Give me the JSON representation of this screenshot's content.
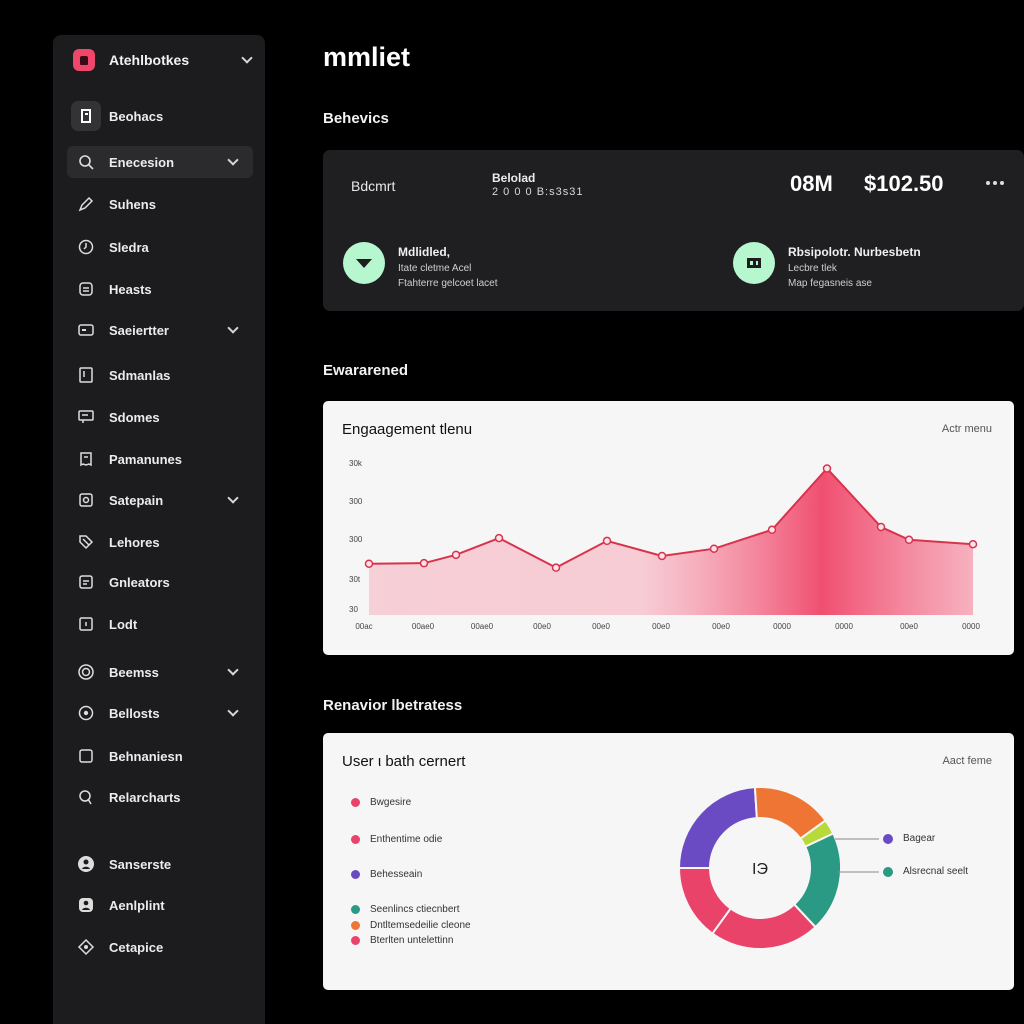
{
  "sidebar": {
    "workspace_name": "Atehlbotkes",
    "items": [
      {
        "label": "Beohacs",
        "icon": "document-icon"
      },
      {
        "label": "Enecesion",
        "icon": "search-icon"
      },
      {
        "label": "Suhens",
        "icon": "pen-icon"
      },
      {
        "label": "Sledra",
        "icon": "clock-icon"
      },
      {
        "label": "Heasts",
        "icon": "file-icon"
      },
      {
        "label": "Saeiertter",
        "icon": "card-icon"
      },
      {
        "label": "Sdmanlas",
        "icon": "bookmark-icon"
      },
      {
        "label": "Sdomes",
        "icon": "message-icon"
      },
      {
        "label": "Pamanunes",
        "icon": "receipt-icon"
      },
      {
        "label": "Satepain",
        "icon": "settings-square-icon"
      },
      {
        "label": "Lehores",
        "icon": "tag-icon"
      },
      {
        "label": "Gnleators",
        "icon": "layers-icon"
      },
      {
        "label": "Lodt",
        "icon": "lock-icon"
      },
      {
        "label": "Beemss",
        "icon": "target-icon"
      },
      {
        "label": "Bellosts",
        "icon": "gear-icon"
      },
      {
        "label": "Behnaniesn",
        "icon": "square-icon"
      },
      {
        "label": "Relarcharts",
        "icon": "pin-icon"
      },
      {
        "label": "Sanserste",
        "icon": "user-circle-icon"
      },
      {
        "label": "Aenlplint",
        "icon": "user-badge-icon"
      },
      {
        "label": "Cetapice",
        "icon": "chat-bubble-icon"
      }
    ]
  },
  "main": {
    "page_title": "mmliet",
    "section_billing": "Behevics",
    "billing": {
      "left_label": "Bdcmrt",
      "mid_label": "Belolad",
      "mid_value": "2 0 0 0 B:s3s31",
      "qty": "08M",
      "amount": "$102.50",
      "methods": [
        {
          "title": "Mdlidled,",
          "line1": "Itate cletme Acel",
          "line2": "Ftahterre gelcoet lacet"
        },
        {
          "title": "Rbsipolotr. Nurbesbetn",
          "line1": "Lecbre tlek",
          "line2": "Map fegasneis ase"
        }
      ]
    },
    "section_engagement": "Ewararened",
    "section_behavior": "Renavior lbetratess",
    "colors": {
      "accent": "#f0466a",
      "line": "#d8334d",
      "mint": "#b6f7cf",
      "donut": [
        "#6a4bc4",
        "#ee7534",
        "#b8d93a",
        "#2a9a84",
        "#e9436a"
      ]
    }
  },
  "chart_data": [
    {
      "type": "area",
      "title": "Engaagement tlenu",
      "action": "Actr menu",
      "y_ticks": [
        "30k",
        "300",
        "300",
        "30t",
        "30"
      ],
      "x_labels": [
        "00ac",
        "00ae0",
        "00ae0",
        "00e0",
        "00e0",
        "00e0",
        "00e0",
        "0000",
        "0000",
        "00e0",
        "0000"
      ],
      "values": [
        92,
        93,
        108,
        138,
        85,
        133,
        106,
        119,
        153,
        263,
        158,
        135,
        127
      ],
      "ylim": [
        0,
        280
      ]
    },
    {
      "type": "pie",
      "title": "User ι bath cernert",
      "action": "Aact feme",
      "left_legend": [
        {
          "label": "Bwgesire",
          "color": "#e9436a"
        },
        {
          "label": "Enthentime odie",
          "color": "#e9436a"
        },
        {
          "label": "Behesseain",
          "color": "#6a4bc4"
        },
        {
          "label": "Seenlincs ctiecnbert",
          "color": "#2a9a84"
        },
        {
          "label": "Dntltemsedeilie cleone",
          "color": "#ee7534"
        },
        {
          "label": "Bterlten untelettinn",
          "color": "#e9436a"
        }
      ],
      "right_legend": [
        {
          "label": "Bagear",
          "color": "#6a4bc4"
        },
        {
          "label": "Alsrecnal seelt",
          "color": "#2a9a84"
        }
      ],
      "center_label": "IЭ",
      "slices": [
        {
          "color": "#6a4bc4",
          "value": 24
        },
        {
          "color": "#ee7534",
          "value": 16
        },
        {
          "color": "#b8d93a",
          "value": 3
        },
        {
          "color": "#2a9a84",
          "value": 20
        },
        {
          "color": "#e9436a",
          "value": 22
        },
        {
          "color": "#e9436a",
          "value": 15
        }
      ]
    }
  ]
}
